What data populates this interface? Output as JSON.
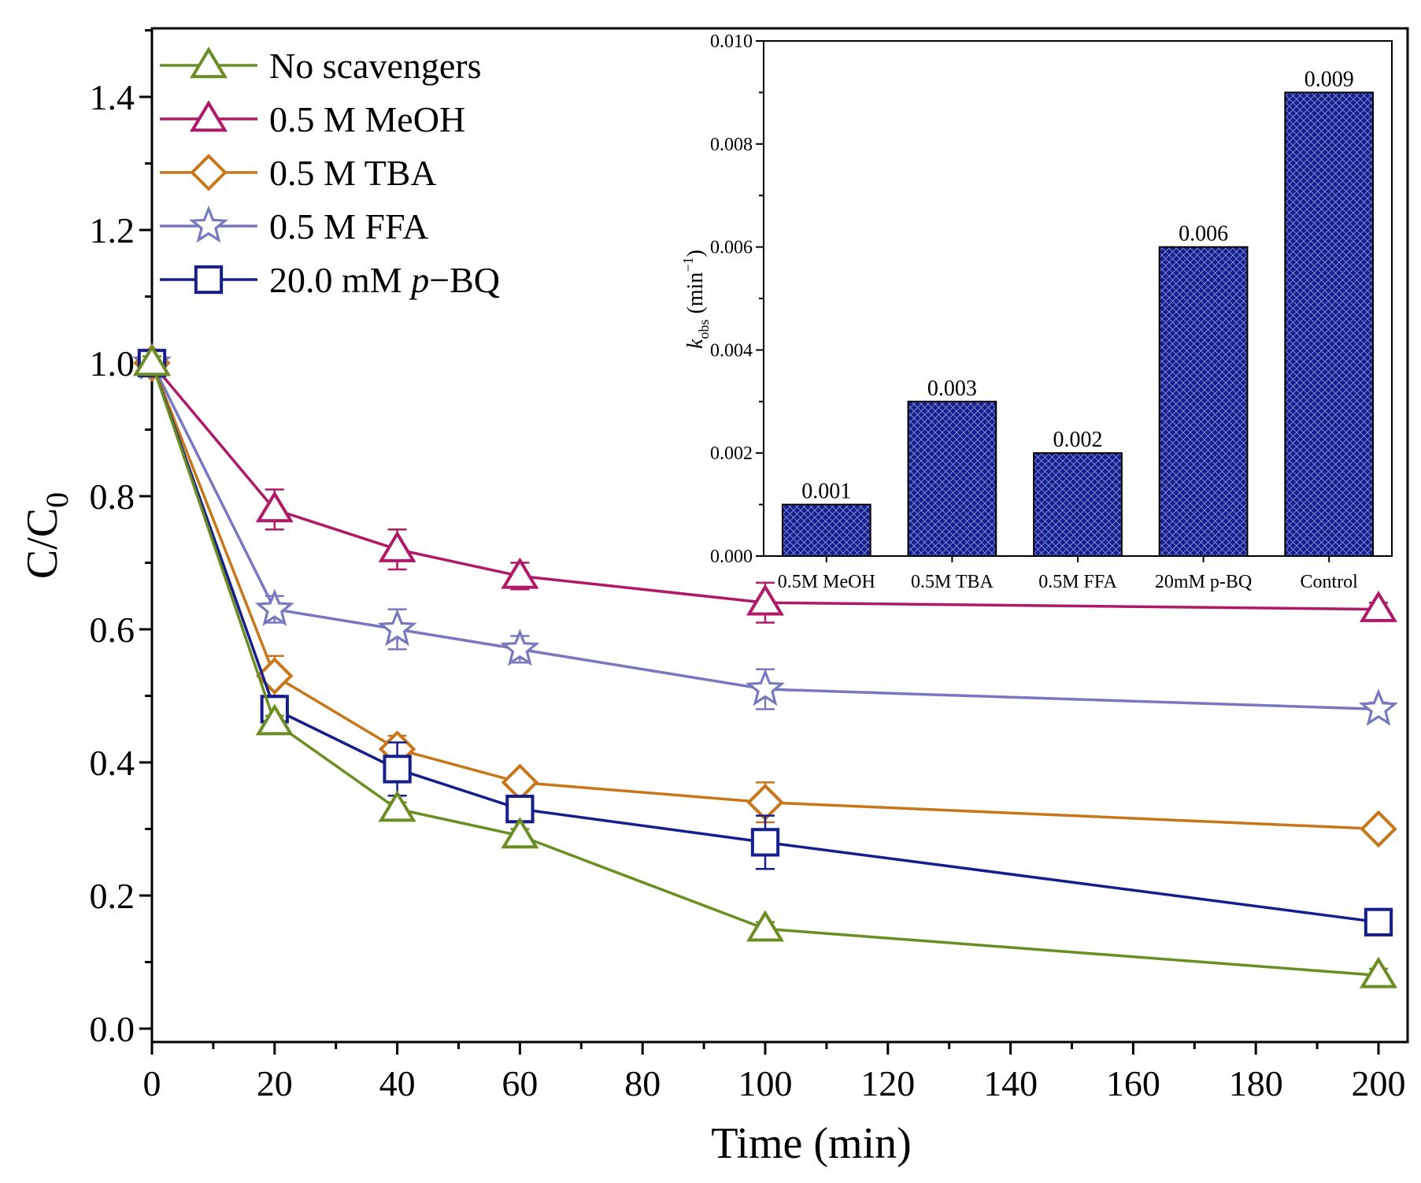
{
  "chart_data": [
    {
      "id": "main",
      "type": "line",
      "xlabel": "Time (min)",
      "ylabel_main": "C/C",
      "ylabel_sub": "0",
      "xlim": [
        0,
        200
      ],
      "ylim": [
        0,
        1.5
      ],
      "xticks": [
        0,
        20,
        40,
        60,
        80,
        100,
        120,
        140,
        160,
        180,
        200
      ],
      "yticks": [
        0.0,
        0.2,
        0.4,
        0.6,
        0.8,
        1.0,
        1.2,
        1.4
      ],
      "ytick_labels": [
        "0.0",
        "0.2",
        "0.4",
        "0.6",
        "0.8",
        "1.0",
        "1.2",
        "1.4"
      ],
      "x": [
        0,
        20,
        40,
        60,
        100,
        200
      ],
      "legend_position": "top-left",
      "series": [
        {
          "name": "No scavengers",
          "color": "#6b8e23",
          "marker": "triangle",
          "values": [
            1.0,
            0.46,
            0.33,
            0.29,
            0.15,
            0.08
          ],
          "errors": [
            0.01,
            0.01,
            0.01,
            0.01,
            0.01,
            0.01
          ]
        },
        {
          "name": "0.5 M MeOH",
          "color": "#b0186a",
          "marker": "triangle",
          "values": [
            1.0,
            0.78,
            0.72,
            0.68,
            0.64,
            0.63
          ],
          "errors": [
            0.01,
            0.03,
            0.03,
            0.02,
            0.03,
            0.01
          ]
        },
        {
          "name": "0.5 M TBA",
          "color": "#c8761a",
          "marker": "diamond",
          "values": [
            1.0,
            0.53,
            0.42,
            0.37,
            0.34,
            0.3
          ],
          "errors": [
            0.01,
            0.03,
            0.02,
            0.01,
            0.03,
            0.01
          ]
        },
        {
          "name": "0.5 M FFA",
          "color": "#7878c0",
          "marker": "star",
          "values": [
            1.0,
            0.63,
            0.6,
            0.57,
            0.51,
            0.48
          ],
          "errors": [
            0.01,
            0.02,
            0.03,
            0.02,
            0.03,
            0.01
          ]
        },
        {
          "name": "20.0 mM ",
          "name_italic": "p",
          "name_suffix": "−BQ",
          "color": "#141e8c",
          "marker": "square",
          "values": [
            1.0,
            0.48,
            0.39,
            0.33,
            0.28,
            0.16
          ],
          "errors": [
            0.01,
            0.02,
            0.04,
            0.02,
            0.04,
            0.01
          ]
        }
      ]
    },
    {
      "id": "inset",
      "type": "bar",
      "categories": [
        "0.5M MeOH",
        "0.5M TBA",
        "0.5M FFA",
        "20mM p-BQ",
        "Control"
      ],
      "values": [
        0.001,
        0.003,
        0.002,
        0.006,
        0.009
      ],
      "value_labels": [
        "0.001",
        "0.003",
        "0.002",
        "0.006",
        "0.009"
      ],
      "ylim": [
        0,
        0.01
      ],
      "yticks": [
        0.0,
        0.002,
        0.004,
        0.006,
        0.008,
        0.01
      ],
      "ytick_labels": [
        "0.000",
        "0.002",
        "0.004",
        "0.006",
        "0.008",
        "0.010"
      ],
      "ylabel_k": "k",
      "ylabel_sub": "obs",
      "ylabel_unit": " (min",
      "ylabel_sup": "−1",
      "ylabel_close": ")",
      "bar_color": "#141e8c",
      "legend_position": "top-right"
    }
  ]
}
